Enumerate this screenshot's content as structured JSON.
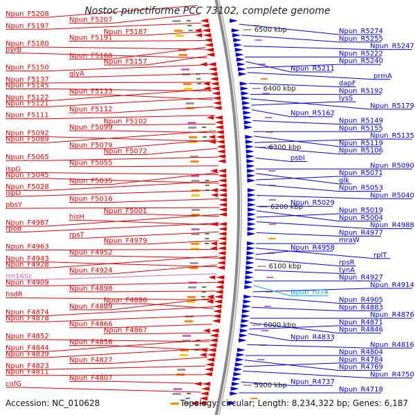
{
  "title": "Nostoc punctiforme PCC 73102, complete genome",
  "footer": {
    "accession": "Accession: NC_010628",
    "summary": "Topology: circular; Length: 8,234,322 bp; Genes: 6,187"
  },
  "colors": {
    "left_strand": "#e00000",
    "right_strand": "#0000dd",
    "rna": "#00aadd",
    "rrna": "#dd66bb",
    "backbone": "#888888"
  },
  "scale_ticks": [
    "6500 kbp",
    "6400 kbp",
    "6300 kbp",
    "6200 kbp",
    "6100 kbp",
    "6000 kbp",
    "5900 kbp"
  ],
  "left_labels": [
    {
      "text": "Npun_F5208",
      "kind": "gene"
    },
    {
      "text": "Npun_F5207",
      "kind": "gene"
    },
    {
      "text": "Npun_F5197",
      "kind": "gene"
    },
    {
      "text": "Npun_F5187",
      "kind": "gene"
    },
    {
      "text": "Npun_F5191",
      "kind": "gene"
    },
    {
      "text": "Npun_F5180",
      "kind": "gene"
    },
    {
      "text": "pyrB",
      "kind": "gene"
    },
    {
      "text": "Npun_F5168",
      "kind": "gene"
    },
    {
      "text": "Npun_F5157",
      "kind": "gene"
    },
    {
      "text": "Npun_F5150",
      "kind": "gene"
    },
    {
      "text": "glyA",
      "kind": "gene"
    },
    {
      "text": "Npun_F5137",
      "kind": "gene"
    },
    {
      "text": "Npun_F5145",
      "kind": "gene"
    },
    {
      "text": "Npun_F5133",
      "kind": "gene"
    },
    {
      "text": "Npun_F5122",
      "kind": "gene"
    },
    {
      "text": "Npun_F5121",
      "kind": "gene"
    },
    {
      "text": "Npun_F5112",
      "kind": "gene"
    },
    {
      "text": "Npun_F5111",
      "kind": "gene"
    },
    {
      "text": "Npun_F5102",
      "kind": "gene"
    },
    {
      "text": "Npun_F5099",
      "kind": "gene"
    },
    {
      "text": "Npun_F5092",
      "kind": "gene"
    },
    {
      "text": "Npun_F5089",
      "kind": "gene"
    },
    {
      "text": "Npun_F5079",
      "kind": "gene"
    },
    {
      "text": "Npun_F5072",
      "kind": "gene"
    },
    {
      "text": "Npun_F5065",
      "kind": "gene"
    },
    {
      "text": "Npun_F5055",
      "kind": "gene"
    },
    {
      "text": "ispG",
      "kind": "gene"
    },
    {
      "text": "Npun_F5045",
      "kind": "gene"
    },
    {
      "text": "Npun_F5035",
      "kind": "gene"
    },
    {
      "text": "Npun_F5028",
      "kind": "gene"
    },
    {
      "text": "ispD",
      "kind": "gene"
    },
    {
      "text": "Npun_F5016",
      "kind": "gene"
    },
    {
      "text": "pbsY",
      "kind": "gene"
    },
    {
      "text": "Npun_F5001",
      "kind": "gene"
    },
    {
      "text": "hisH",
      "kind": "gene"
    },
    {
      "text": "Npun_F4987",
      "kind": "gene"
    },
    {
      "text": "rpoB",
      "kind": "gene"
    },
    {
      "text": "rpsT",
      "kind": "gene"
    },
    {
      "text": "Npun_F4979",
      "kind": "gene"
    },
    {
      "text": "Npun_F4963",
      "kind": "gene"
    },
    {
      "text": "Npun_F4952",
      "kind": "gene"
    },
    {
      "text": "Npun_F4943",
      "kind": "gene"
    },
    {
      "text": "Npun_F4928",
      "kind": "gene"
    },
    {
      "text": "Npun_F4924",
      "kind": "gene"
    },
    {
      "text": "rrn16Sc",
      "kind": "rrna"
    },
    {
      "text": "Npun_F4909",
      "kind": "gene"
    },
    {
      "text": "Npun_F4898",
      "kind": "gene"
    },
    {
      "text": "hsdR",
      "kind": "gene"
    },
    {
      "text": "Npun_F4886",
      "kind": "gene"
    },
    {
      "text": "Npun_F4889",
      "kind": "gene"
    },
    {
      "text": "Npun_F4874",
      "kind": "gene"
    },
    {
      "text": "Npun_F4878",
      "kind": "gene"
    },
    {
      "text": "Npun_F4866",
      "kind": "gene"
    },
    {
      "text": "Npun_F4867",
      "kind": "gene"
    },
    {
      "text": "Npun_F4852",
      "kind": "gene"
    },
    {
      "text": "Npun_F4856",
      "kind": "gene"
    },
    {
      "text": "Npun_F4844",
      "kind": "gene"
    },
    {
      "text": "Npun_F4839",
      "kind": "gene"
    },
    {
      "text": "Npun_F4827",
      "kind": "gene"
    },
    {
      "text": "Npun_F4823",
      "kind": "gene"
    },
    {
      "text": "Npun_F4811",
      "kind": "gene"
    },
    {
      "text": "Npun_F4807",
      "kind": "gene"
    },
    {
      "text": "cofG",
      "kind": "gene"
    }
  ],
  "right_labels": [
    {
      "text": "Npun_R5274",
      "kind": "gene"
    },
    {
      "text": "Npun_R5255",
      "kind": "gene"
    },
    {
      "text": "Npun_R5247",
      "kind": "gene"
    },
    {
      "text": "Npun_R5222",
      "kind": "gene"
    },
    {
      "text": "Npun_R5240",
      "kind": "gene"
    },
    {
      "text": "Npun_R5211",
      "kind": "gene"
    },
    {
      "text": "prmA",
      "kind": "gene"
    },
    {
      "text": "dapF",
      "kind": "gene"
    },
    {
      "text": "Npun_R5192",
      "kind": "gene"
    },
    {
      "text": "lysS",
      "kind": "gene"
    },
    {
      "text": "Npun_R5179",
      "kind": "gene"
    },
    {
      "text": "Npun_R5162",
      "kind": "gene"
    },
    {
      "text": "Npun_R5149",
      "kind": "gene"
    },
    {
      "text": "Npun_R5155",
      "kind": "gene"
    },
    {
      "text": "Npun_R5135",
      "kind": "gene"
    },
    {
      "text": "Npun_R5119",
      "kind": "gene"
    },
    {
      "text": "Npun_R5106",
      "kind": "gene"
    },
    {
      "text": "psbI",
      "kind": "gene"
    },
    {
      "text": "Npun_R5090",
      "kind": "gene"
    },
    {
      "text": "Npun_R5071",
      "kind": "gene"
    },
    {
      "text": "glk",
      "kind": "gene"
    },
    {
      "text": "Npun_R5053",
      "kind": "gene"
    },
    {
      "text": "Npun_R5040",
      "kind": "gene"
    },
    {
      "text": "Npun_R5029",
      "kind": "gene"
    },
    {
      "text": "Npun_R5019",
      "kind": "gene"
    },
    {
      "text": "Npun_R5004",
      "kind": "gene"
    },
    {
      "text": "Npun_R4988",
      "kind": "gene"
    },
    {
      "text": "Npun_R4977",
      "kind": "gene"
    },
    {
      "text": "mraW",
      "kind": "gene"
    },
    {
      "text": "Npun_R4958",
      "kind": "gene"
    },
    {
      "text": "rplT",
      "kind": "gene"
    },
    {
      "text": "rpsR",
      "kind": "gene"
    },
    {
      "text": "tynA",
      "kind": "gene"
    },
    {
      "text": "Npun_R4927",
      "kind": "gene"
    },
    {
      "text": "Npun_R4914",
      "kind": "gene"
    },
    {
      "text": "Npun_r074",
      "kind": "rna"
    },
    {
      "text": "Npun_R4905",
      "kind": "gene"
    },
    {
      "text": "Npun_R4883",
      "kind": "gene"
    },
    {
      "text": "Npun_R4876",
      "kind": "gene"
    },
    {
      "text": "Npun_R4871",
      "kind": "gene"
    },
    {
      "text": "Npun_R4846",
      "kind": "gene"
    },
    {
      "text": "Npun_R4833",
      "kind": "gene"
    },
    {
      "text": "Npun_R4816",
      "kind": "gene"
    },
    {
      "text": "Npun_R4804",
      "kind": "gene"
    },
    {
      "text": "Npun_R4784",
      "kind": "gene"
    },
    {
      "text": "Npun_R4769",
      "kind": "gene"
    },
    {
      "text": "Npun_R4750",
      "kind": "gene"
    },
    {
      "text": "Npun_R4737",
      "kind": "gene"
    },
    {
      "text": "Npun_R4718",
      "kind": "gene"
    }
  ]
}
